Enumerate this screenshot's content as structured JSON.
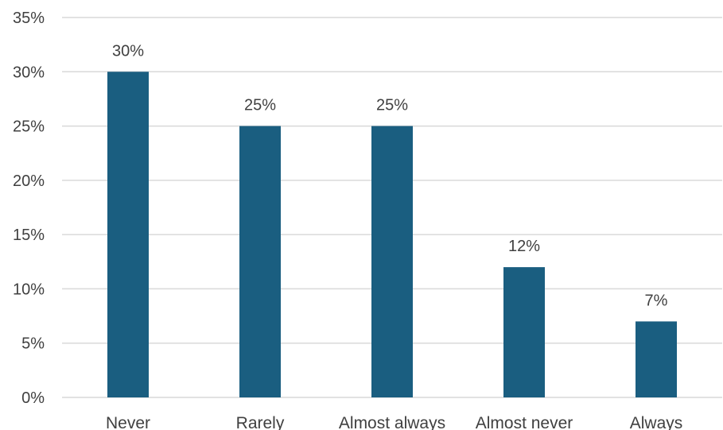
{
  "chart_data": {
    "type": "bar",
    "title": "",
    "xlabel": "",
    "ylabel": "",
    "categories": [
      "Never",
      "Rarely",
      "Almost always",
      "Almost never",
      "Always"
    ],
    "values": [
      30,
      25,
      25,
      12,
      7
    ],
    "data_labels": [
      "30%",
      "25%",
      "25%",
      "12%",
      "7%"
    ],
    "ylim": [
      0,
      35
    ],
    "y_ticks": [
      0,
      5,
      10,
      15,
      20,
      25,
      30,
      35
    ],
    "y_tick_labels": [
      "0%",
      "5%",
      "10%",
      "15%",
      "20%",
      "25%",
      "30%",
      "35%"
    ],
    "grid": true,
    "legend": "none",
    "colors": {
      "bar": "#1a5e80",
      "grid": "#d9d9d9",
      "text": "#404040"
    }
  }
}
